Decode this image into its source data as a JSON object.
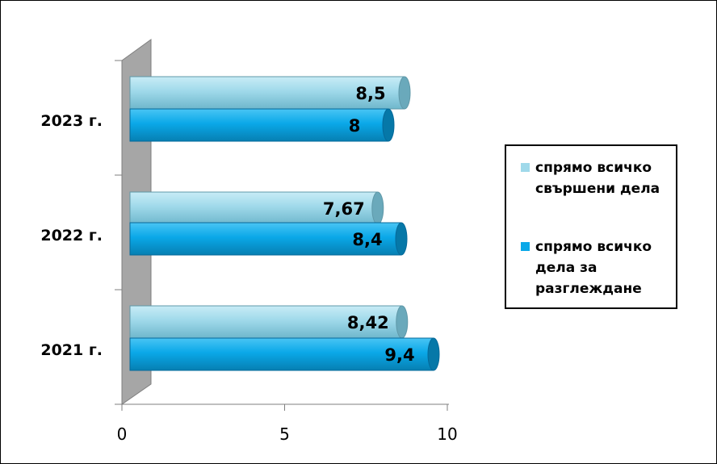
{
  "chart_data": {
    "type": "bar",
    "orientation": "horizontal",
    "categories": [
      "2021 г.",
      "2022 г.",
      "2023 г."
    ],
    "series": [
      {
        "name": "спрямо всичко свършени дела",
        "values": [
          8.42,
          7.67,
          8.5
        ],
        "labels": [
          "8,42",
          "7,67",
          "8,5"
        ],
        "color": "#9fd9ea"
      },
      {
        "name": "спрямо всичко дела за разглеждане",
        "values": [
          9.4,
          8.4,
          8
        ],
        "labels": [
          "9,4",
          "8,4",
          "8"
        ],
        "color": "#0aa8e8"
      }
    ],
    "xlim": [
      0,
      10
    ],
    "xticks": [
      "0",
      "5",
      "10"
    ],
    "grid": false,
    "legend_position": "right",
    "style": "3d-cylinder"
  }
}
